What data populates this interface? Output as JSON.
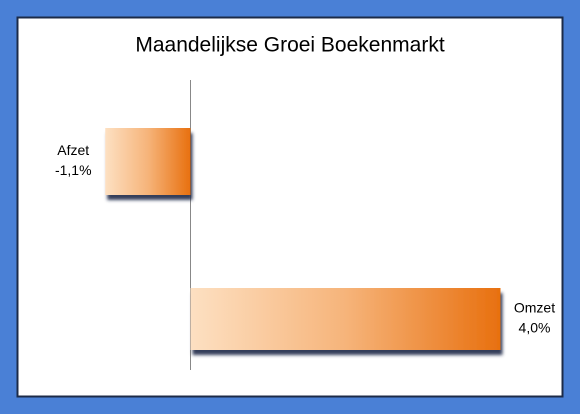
{
  "chart_data": {
    "type": "bar",
    "orientation": "horizontal",
    "title": "Maandelijkse Groei Boekenmarkt",
    "categories": [
      "Afzet",
      "Omzet"
    ],
    "values": [
      -1.1,
      4.0
    ],
    "value_labels": [
      "-1,1%",
      "4,0%"
    ],
    "color": "#e8700f"
  }
}
